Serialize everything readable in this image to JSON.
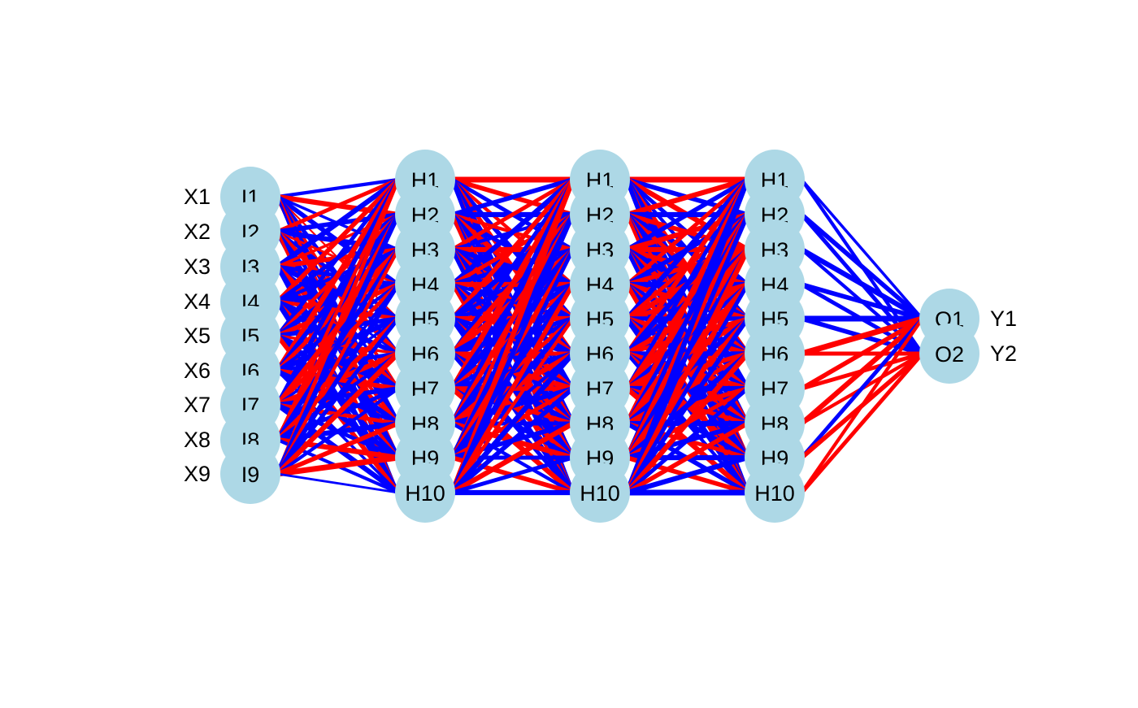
{
  "colors": {
    "background": "#ffffff",
    "node_fill": "#add8e6",
    "positive_edge": "#0000ff",
    "negative_edge": "#ff0000",
    "label_text": "#000000"
  },
  "layers": [
    {
      "id": "input",
      "nodes": [
        "I1",
        "I2",
        "I3",
        "I4",
        "I5",
        "I6",
        "I7",
        "I8",
        "I9"
      ],
      "side_labels": [
        "X1",
        "X2",
        "X3",
        "X4",
        "X5",
        "X6",
        "X7",
        "X8",
        "X9"
      ]
    },
    {
      "id": "hidden1",
      "nodes": [
        "H1",
        "H2",
        "H3",
        "H4",
        "H5",
        "H6",
        "H7",
        "H8",
        "H9",
        "H10"
      ]
    },
    {
      "id": "hidden2",
      "nodes": [
        "H1",
        "H2",
        "H3",
        "H4",
        "H5",
        "H6",
        "H7",
        "H8",
        "H9",
        "H10"
      ]
    },
    {
      "id": "hidden3",
      "nodes": [
        "H1",
        "H2",
        "H3",
        "H4",
        "H5",
        "H6",
        "H7",
        "H8",
        "H9",
        "H10"
      ]
    },
    {
      "id": "output",
      "nodes": [
        "O1",
        "O2"
      ],
      "side_labels": [
        "Y1",
        "Y2"
      ]
    }
  ],
  "edge_encoding": {
    "positive": "blue",
    "negative": "red",
    "line_width": "proportional to weight magnitude"
  },
  "weights": {
    "input_to_hidden1": [
      [
        0.6,
        -0.9,
        0.5,
        0.8,
        -0.3,
        0.7,
        -0.6,
        0.9,
        -0.7,
        0.4
      ],
      [
        -0.7,
        0.8,
        0.9,
        -0.4,
        0.6,
        -0.8,
        0.5,
        0.7,
        0.9,
        -0.5
      ],
      [
        0.9,
        -0.5,
        -0.8,
        0.7,
        0.9,
        0.4,
        -0.9,
        -0.6,
        0.8,
        0.7
      ],
      [
        -0.8,
        0.7,
        0.6,
        0.9,
        -0.7,
        0.8,
        0.9,
        -0.5,
        -0.6,
        0.9
      ],
      [
        0.7,
        -0.6,
        0.9,
        -0.8,
        0.8,
        -0.5,
        0.7,
        0.9,
        0.6,
        -0.8
      ],
      [
        -0.9,
        0.8,
        -0.7,
        0.6,
        0.9,
        0.7,
        -0.8,
        0.6,
        0.9,
        0.5
      ],
      [
        0.8,
        0.6,
        -0.9,
        -0.7,
        0.5,
        -0.9,
        0.8,
        -0.7,
        0.7,
        0.9
      ],
      [
        -0.6,
        -0.9,
        0.8,
        0.5,
        -0.8,
        0.6,
        0.7,
        0.9,
        -0.9,
        0.6
      ],
      [
        -0.7,
        0.9,
        -0.6,
        0.8,
        0.7,
        -0.9,
        0.6,
        -0.8,
        -1.0,
        0.4
      ]
    ],
    "hidden1_to_hidden2": [
      [
        -1.0,
        -0.8,
        0.7,
        -0.6,
        0.8,
        -0.7,
        0.6,
        0.9,
        -0.5,
        0.7
      ],
      [
        0.8,
        0.9,
        -0.6,
        0.7,
        -0.9,
        0.8,
        0.5,
        -0.7,
        0.9,
        -0.6
      ],
      [
        -0.7,
        0.6,
        -0.9,
        0.8,
        0.7,
        -0.8,
        0.9,
        0.6,
        -0.8,
        0.7
      ],
      [
        0.9,
        -0.7,
        0.8,
        -0.9,
        0.6,
        0.7,
        -0.8,
        0.9,
        0.7,
        -0.5
      ],
      [
        -0.8,
        0.9,
        0.6,
        0.7,
        -0.9,
        0.8,
        0.7,
        -0.6,
        0.8,
        0.9
      ],
      [
        0.7,
        -0.9,
        -0.8,
        0.9,
        0.8,
        -0.7,
        -0.9,
        0.8,
        -0.6,
        0.7
      ],
      [
        -0.9,
        0.7,
        0.9,
        -0.6,
        0.7,
        0.9,
        -0.8,
        -0.7,
        0.8,
        -0.9
      ],
      [
        0.8,
        -0.8,
        0.7,
        0.9,
        -0.7,
        -0.9,
        0.8,
        0.7,
        -0.9,
        0.6
      ],
      [
        -0.6,
        0.9,
        -0.8,
        0.7,
        0.9,
        0.6,
        -0.7,
        0.8,
        0.7,
        -0.8
      ],
      [
        -0.9,
        0.8,
        0.7,
        -0.8,
        -0.6,
        0.9,
        0.8,
        -0.9,
        0.7,
        0.9
      ]
    ],
    "hidden2_to_hidden3": [
      [
        -1.0,
        0.8,
        -0.9,
        0.7,
        0.6,
        -0.8,
        0.9,
        0.7,
        -0.7,
        0.8
      ],
      [
        -0.9,
        0.9,
        -0.8,
        0.8,
        -0.7,
        0.9,
        0.6,
        -0.8,
        0.7,
        -0.6
      ],
      [
        0.8,
        -0.9,
        -0.9,
        -0.8,
        0.9,
        -0.7,
        0.8,
        0.6,
        -0.8,
        0.7
      ],
      [
        -0.7,
        0.8,
        -0.8,
        0.9,
        -0.9,
        0.7,
        -0.7,
        0.8,
        0.9,
        -0.8
      ],
      [
        0.9,
        -0.7,
        -0.9,
        -0.8,
        0.8,
        -0.9,
        0.7,
        -0.8,
        0.6,
        0.9
      ],
      [
        -0.8,
        0.9,
        0.8,
        -0.9,
        -0.7,
        0.8,
        -0.9,
        0.7,
        -0.8,
        0.6
      ],
      [
        0.7,
        -0.8,
        -0.9,
        0.7,
        -0.9,
        -0.8,
        0.9,
        -0.7,
        0.8,
        -0.9
      ],
      [
        -0.9,
        0.7,
        -0.8,
        -0.9,
        0.8,
        -0.7,
        -0.8,
        0.9,
        -0.7,
        0.8
      ],
      [
        0.8,
        -0.9,
        0.7,
        -0.8,
        -0.9,
        0.9,
        -0.7,
        0.8,
        0.9,
        -0.8
      ],
      [
        0.9,
        0.8,
        -0.9,
        0.7,
        0.8,
        -0.9,
        0.7,
        -0.8,
        0.9,
        1.0
      ]
    ],
    "hidden3_to_output": [
      [
        0.5,
        0.6
      ],
      [
        0.8,
        0.7
      ],
      [
        0.9,
        0.6
      ],
      [
        0.8,
        0.7
      ],
      [
        1.0,
        0.8
      ],
      [
        -1.0,
        -0.7
      ],
      [
        -0.8,
        -0.7
      ],
      [
        -0.9,
        -0.6
      ],
      [
        0.7,
        -0.8
      ],
      [
        -0.6,
        -0.7
      ]
    ]
  }
}
